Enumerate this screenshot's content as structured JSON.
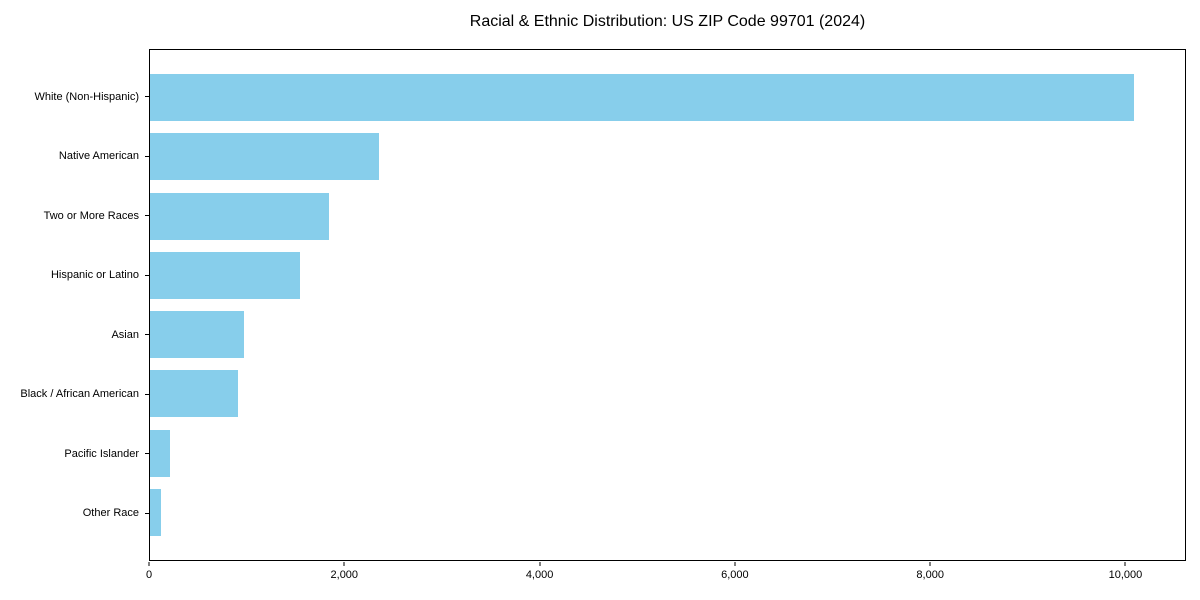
{
  "chart_data": {
    "type": "bar",
    "orientation": "horizontal",
    "title": "Racial & Ethnic Distribution: US ZIP Code 99701 (2024)",
    "categories": [
      "White (Non-Hispanic)",
      "Native American",
      "Two or More Races",
      "Hispanic or Latino",
      "Asian",
      "Black / African American",
      "Pacific Islander",
      "Other Race"
    ],
    "values": [
      10100,
      2350,
      1840,
      1540,
      965,
      905,
      205,
      115
    ],
    "xlabel": "",
    "ylabel": "",
    "x_ticks": [
      0,
      2000,
      4000,
      6000,
      8000,
      10000
    ],
    "x_tick_labels": [
      "0",
      "2,000",
      "4,000",
      "6,000",
      "8,000",
      "10,000"
    ],
    "xlim": [
      0,
      10620
    ],
    "grid": false,
    "legend": false,
    "bar_color": "#87CEEB",
    "frame_color": "#000000",
    "background_color": "#ffffff"
  }
}
